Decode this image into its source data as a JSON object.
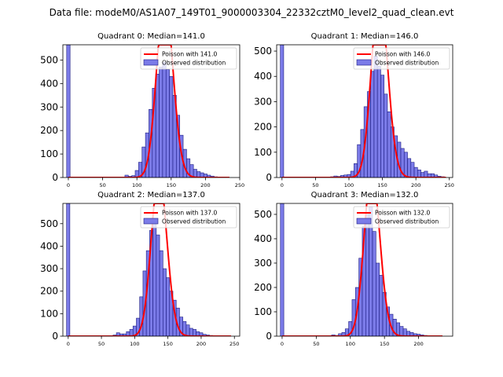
{
  "figure": {
    "title": "Data file: modeM0/AS1A07_149T01_9000003304_22332cztM0_level2_quad_clean.evt"
  },
  "colors": {
    "bar_fill": "#7b7be8",
    "bar_edge": "#1a1a80",
    "poisson_line": "#ff0000",
    "axis": "#000000"
  },
  "chart_data": [
    {
      "type": "bar",
      "title": "Quadrant 0: Median=141.0",
      "xlim": [
        -8,
        250
      ],
      "ylim": [
        0,
        565
      ],
      "xticks": [
        "0",
        "50",
        "100",
        "150",
        "200",
        "250"
      ],
      "yticks": [
        "0",
        "100",
        "200",
        "300",
        "400",
        "500"
      ],
      "bin_width": 5,
      "peak_bar": {
        "x": 0,
        "value": 565
      },
      "histogram": {
        "x": [
          85,
          90,
          95,
          100,
          105,
          110,
          115,
          120,
          125,
          130,
          135,
          140,
          145,
          150,
          155,
          160,
          165,
          170,
          175,
          180,
          185,
          190,
          195,
          200,
          205,
          210,
          215,
          220
        ],
        "values": [
          10,
          5,
          8,
          30,
          65,
          130,
          190,
          290,
          380,
          440,
          470,
          490,
          460,
          430,
          350,
          265,
          180,
          120,
          80,
          55,
          35,
          25,
          20,
          15,
          10,
          6,
          3,
          2
        ]
      },
      "poisson": {
        "lambda": 141.0,
        "label": "Poisson with 141.0",
        "x_range": [
          0,
          235
        ]
      },
      "legend": {
        "position": "top-right",
        "entries": [
          "Poisson with 141.0",
          "Observed distribution"
        ]
      }
    },
    {
      "type": "bar",
      "title": "Quadrant 1: Median=146.0",
      "xlim": [
        -8,
        255
      ],
      "ylim": [
        0,
        525
      ],
      "xticks": [
        "0",
        "50",
        "100",
        "150",
        "200",
        "250"
      ],
      "yticks": [
        "0",
        "100",
        "200",
        "300",
        "400",
        "500"
      ],
      "bin_width": 5,
      "peak_bar": {
        "x": 0,
        "value": 525
      },
      "histogram": {
        "x": [
          75,
          80,
          85,
          90,
          95,
          100,
          105,
          110,
          115,
          120,
          125,
          130,
          135,
          140,
          145,
          150,
          155,
          160,
          165,
          170,
          175,
          180,
          185,
          190,
          195,
          200,
          205,
          210,
          215,
          220,
          225,
          230,
          235,
          240
        ],
        "values": [
          3,
          6,
          4,
          8,
          10,
          12,
          25,
          55,
          130,
          190,
          280,
          340,
          420,
          480,
          440,
          405,
          330,
          260,
          200,
          165,
          140,
          115,
          100,
          75,
          60,
          40,
          30,
          20,
          25,
          15,
          15,
          10,
          5,
          3
        ]
      },
      "poisson": {
        "lambda": 146.0,
        "label": "Poisson with 146.0",
        "x_range": [
          0,
          245
        ]
      },
      "legend": {
        "position": "top-right",
        "entries": [
          "Poisson with 146.0",
          "Observed distribution"
        ]
      }
    },
    {
      "type": "bar",
      "title": "Quadrant 2: Median=137.0",
      "xlim": [
        -8,
        258
      ],
      "ylim": [
        0,
        590
      ],
      "xticks": [
        "0",
        "50",
        "100",
        "150",
        "200",
        "250"
      ],
      "yticks": [
        "0",
        "100",
        "200",
        "300",
        "400",
        "500"
      ],
      "bin_width": 5,
      "peak_bar": {
        "x": 0,
        "value": 590
      },
      "histogram": {
        "x": [
          70,
          75,
          80,
          85,
          90,
          95,
          100,
          105,
          110,
          115,
          120,
          125,
          130,
          135,
          140,
          145,
          150,
          155,
          160,
          165,
          170,
          175,
          180,
          185,
          190,
          195,
          200,
          205,
          210,
          215,
          220
        ],
        "values": [
          5,
          15,
          10,
          10,
          20,
          30,
          45,
          80,
          175,
          290,
          380,
          470,
          500,
          450,
          380,
          300,
          260,
          200,
          160,
          125,
          85,
          65,
          50,
          35,
          30,
          20,
          15,
          8,
          5,
          3,
          2
        ]
      },
      "poisson": {
        "lambda": 137.0,
        "label": "Poisson with 137.0",
        "x_range": [
          0,
          245
        ]
      },
      "legend": {
        "position": "top-right",
        "entries": [
          "Poisson with 137.0",
          "Observed distribution"
        ]
      }
    },
    {
      "type": "bar",
      "title": "Quadrant 3: Median=132.0",
      "xlim": [
        -8,
        250
      ],
      "ylim": [
        0,
        545
      ],
      "xticks": [
        "0",
        "50",
        "100",
        "150",
        "200"
      ],
      "yticks": [
        "0",
        "100",
        "200",
        "300",
        "400",
        "500"
      ],
      "bin_width": 5,
      "peak_bar": {
        "x": 0,
        "value": 545
      },
      "histogram": {
        "x": [
          75,
          80,
          85,
          90,
          95,
          100,
          105,
          110,
          115,
          120,
          125,
          130,
          135,
          140,
          145,
          150,
          155,
          160,
          165,
          170,
          175,
          180,
          185,
          190,
          195,
          200,
          205,
          210,
          215
        ],
        "values": [
          5,
          3,
          10,
          15,
          30,
          60,
          150,
          200,
          320,
          450,
          500,
          530,
          430,
          300,
          250,
          180,
          120,
          90,
          70,
          55,
          40,
          30,
          20,
          15,
          10,
          8,
          5,
          3,
          2
        ]
      },
      "poisson": {
        "lambda": 132.0,
        "label": "Poisson with 132.0",
        "x_range": [
          0,
          235
        ]
      },
      "legend": {
        "position": "top-right",
        "entries": [
          "Poisson with 132.0",
          "Observed distribution"
        ]
      }
    }
  ]
}
